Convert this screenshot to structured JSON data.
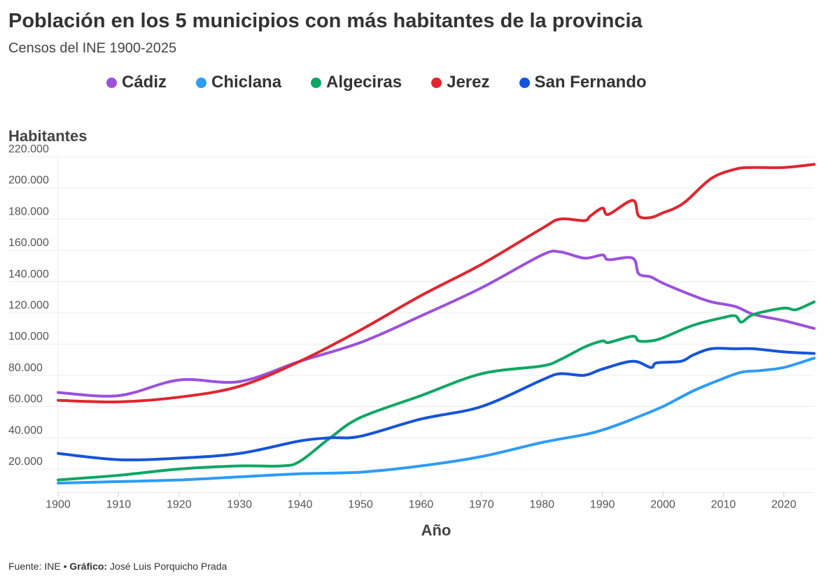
{
  "title": "Población en los 5 municipios con más habitantes de la provincia",
  "subtitle": "Censos del INE 1900-2025",
  "footer": {
    "source_label": "Fuente: INE • ",
    "credit_label": "Gráfico:",
    "credit_name": " José Luis Porquicho Prada"
  },
  "chart_data": {
    "type": "line",
    "title": "Población en los 5 municipios con más habitantes de la provincia",
    "subtitle": "Censos del INE 1900-2025",
    "xlabel": "Año",
    "ylabel": "Habitantes",
    "xlim": [
      1900,
      2025
    ],
    "ylim": [
      5000,
      220000
    ],
    "x_ticks": [
      "1900",
      "1910",
      "1920",
      "1930",
      "1940",
      "1950",
      "1960",
      "1970",
      "1980",
      "1990",
      "2000",
      "2010",
      "2020"
    ],
    "y_ticks": [
      "20.000",
      "40.000",
      "60.000",
      "80.000",
      "100.000",
      "120.000",
      "140.000",
      "160.000",
      "180.000",
      "200.000",
      "220.000"
    ],
    "grid": "horizontal",
    "legend": "top",
    "series": [
      {
        "name": "Cádiz",
        "color": "#9b51dc",
        "x": [
          1900,
          1910,
          1920,
          1930,
          1940,
          1950,
          1960,
          1970,
          1980,
          1983,
          1987,
          1990,
          1991,
          1995,
          1996,
          1998,
          2000,
          2005,
          2008,
          2012,
          2015,
          2020,
          2025
        ],
        "values": [
          69000,
          67000,
          77000,
          76000,
          89000,
          101000,
          118000,
          136000,
          157000,
          159000,
          155000,
          157000,
          154000,
          155000,
          145000,
          143000,
          139000,
          131000,
          127000,
          124000,
          119000,
          115000,
          110000
        ]
      },
      {
        "name": "Chiclana",
        "color": "#2e9cf4",
        "x": [
          1900,
          1910,
          1920,
          1930,
          1940,
          1950,
          1960,
          1970,
          1980,
          1987,
          1990,
          1993,
          1995,
          2000,
          2005,
          2010,
          2013,
          2016,
          2020,
          2025
        ],
        "values": [
          11000,
          12000,
          13000,
          15000,
          17000,
          18000,
          22000,
          28000,
          37000,
          42000,
          45000,
          49000,
          52000,
          60000,
          70000,
          78000,
          82000,
          83000,
          85000,
          91000
        ]
      },
      {
        "name": "Algeciras",
        "color": "#0ea664",
        "x": [
          1900,
          1910,
          1920,
          1930,
          1937,
          1940,
          1945,
          1950,
          1960,
          1970,
          1980,
          1983,
          1987,
          1990,
          1991,
          1995,
          1996,
          1998,
          2000,
          2005,
          2010,
          2012,
          2013,
          2015,
          2020,
          2022,
          2025
        ],
        "values": [
          13000,
          16000,
          20000,
          22000,
          22000,
          25000,
          40000,
          53000,
          67000,
          81000,
          86000,
          90000,
          98000,
          102000,
          101000,
          105000,
          102000,
          102000,
          104000,
          112000,
          117000,
          118000,
          114000,
          119000,
          123000,
          122000,
          127000
        ]
      },
      {
        "name": "Jerez",
        "color": "#e0252f",
        "x": [
          1900,
          1910,
          1920,
          1930,
          1940,
          1950,
          1960,
          1970,
          1980,
          1983,
          1987,
          1988,
          1990,
          1991,
          1995,
          1996,
          1998,
          2000,
          2002,
          2004,
          2008,
          2012,
          2015,
          2020,
          2025
        ],
        "values": [
          64000,
          63000,
          66000,
          73000,
          89000,
          109000,
          131000,
          151000,
          174000,
          180000,
          179000,
          182000,
          187000,
          183000,
          192000,
          182000,
          181000,
          184000,
          187000,
          192000,
          206000,
          212000,
          213000,
          213000,
          215000
        ]
      },
      {
        "name": "San Fernando",
        "color": "#1654d8",
        "x": [
          1900,
          1910,
          1920,
          1930,
          1940,
          1945,
          1950,
          1960,
          1970,
          1980,
          1983,
          1987,
          1990,
          1995,
          1998,
          1999,
          2003,
          2005,
          2008,
          2012,
          2015,
          2020,
          2025
        ],
        "values": [
          30000,
          26000,
          27000,
          30000,
          38000,
          40000,
          41000,
          52000,
          60000,
          77000,
          81000,
          80000,
          84000,
          89000,
          85000,
          88000,
          89000,
          93000,
          97000,
          97000,
          97000,
          95000,
          94000
        ]
      }
    ]
  }
}
